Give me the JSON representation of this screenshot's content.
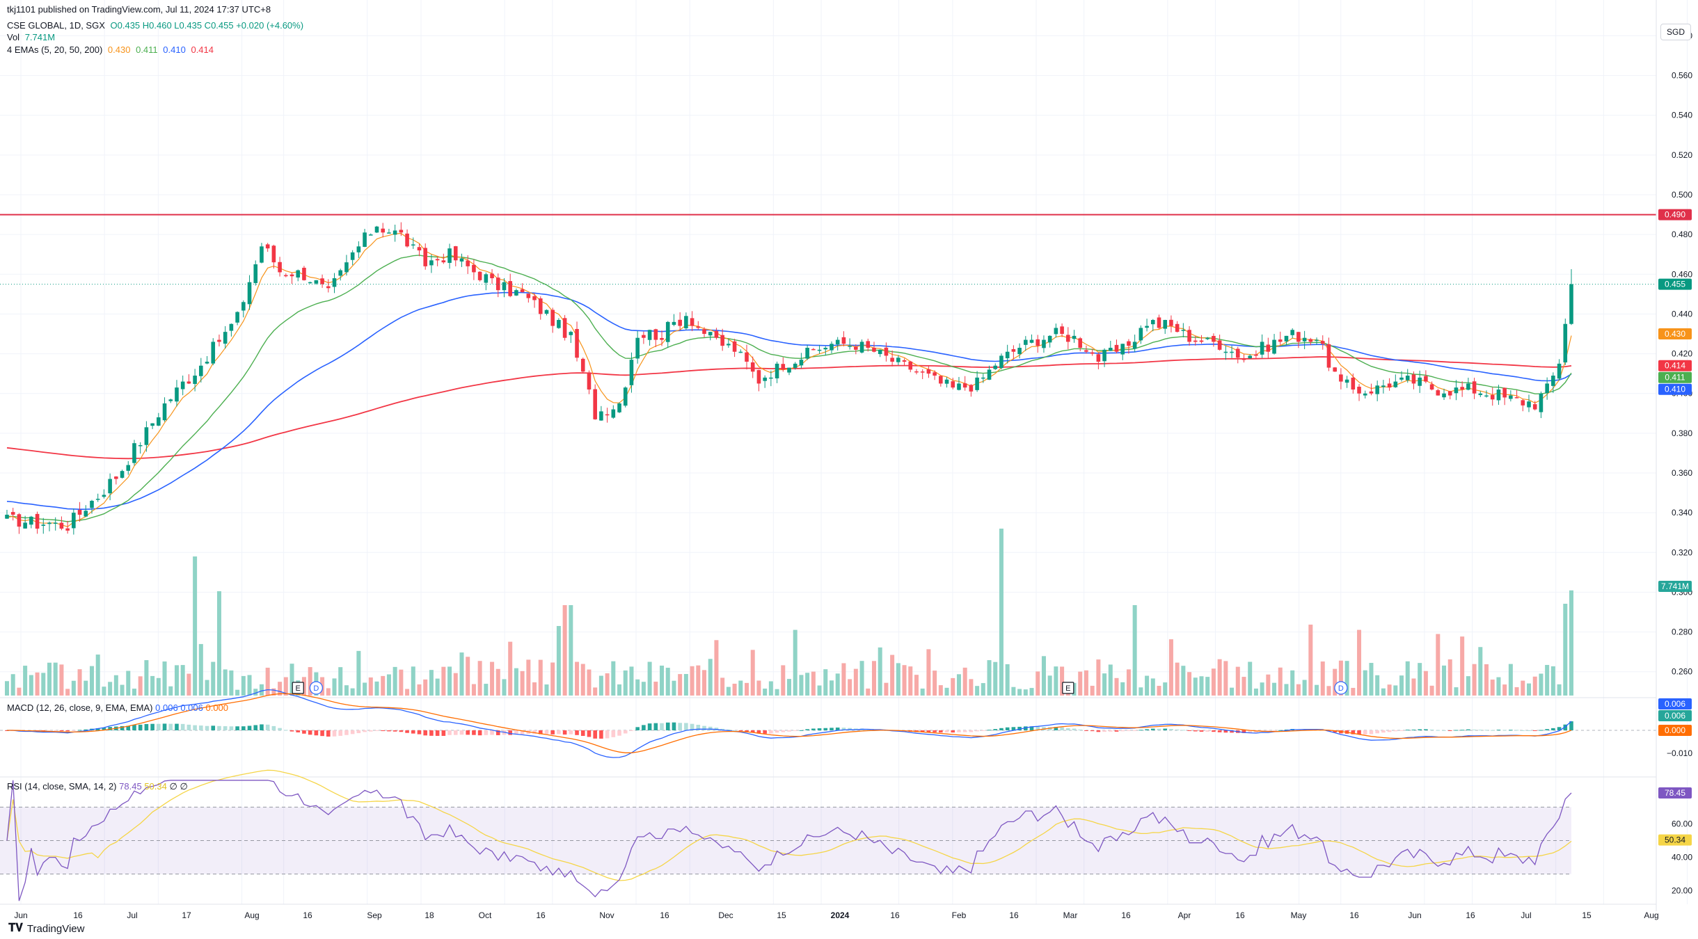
{
  "header": {
    "published": "tkj1101 published on TradingView.com, Jul 11, 2024 17:37 UTC+8"
  },
  "legend": {
    "symbol": "CSE GLOBAL, 1D, SGX",
    "ohlc": "O0.435 H0.460 L0.435 C0.455 +0.020 (+4.60%)",
    "vol_label": "Vol",
    "vol_value": "7.741M",
    "ema_label": "4 EMAs (5, 20, 50, 200)",
    "ema_values": [
      "0.430",
      "0.411",
      "0.410",
      "0.414"
    ],
    "macd_label": "MACD (12, 26, close, 9, EMA, EMA)",
    "macd_values": [
      "0.006",
      "0.006",
      "0.000"
    ],
    "rsi_label": "RSI (14, close, SMA, 14, 2)",
    "rsi_values": [
      "78.45",
      "50.34",
      "∅",
      "∅"
    ]
  },
  "currency": "SGD",
  "brand": "TradingView",
  "colors": {
    "up": "#089981",
    "down": "#f23645",
    "ema5": "#f7931a",
    "ema20": "#4caf50",
    "ema50": "#2962ff",
    "ema200": "#f23645",
    "resistance": "#e0304a",
    "macd": "#2962ff",
    "signal": "#ff6d00",
    "rsi": "#7e57c2",
    "rsi_ma": "#f5d547"
  },
  "chart_data": {
    "type": "candlestick",
    "symbol": "CSE GLOBAL",
    "interval": "1D",
    "exchange": "SGX",
    "price_axis": {
      "ticks": [
        "0.580",
        "0.560",
        "0.540",
        "0.520",
        "0.500",
        "0.480",
        "0.460",
        "0.440",
        "0.420",
        "0.400",
        "0.380",
        "0.360",
        "0.340",
        "0.320",
        "0.300",
        "0.280",
        "0.260"
      ],
      "range": [
        0.248,
        0.598
      ]
    },
    "time_axis": {
      "ticks": [
        "Jun",
        "16",
        "Jul",
        "17",
        "Aug",
        "16",
        "Sep",
        "18",
        "Oct",
        "16",
        "Nov",
        "16",
        "Dec",
        "15",
        "2024",
        "16",
        "Feb",
        "16",
        "Mar",
        "16",
        "Apr",
        "16",
        "May",
        "16",
        "Jun",
        "16",
        "Jul",
        "15",
        "Aug"
      ]
    },
    "horizontal_line": {
      "value": 0.49,
      "label": "0.490"
    },
    "last_price": {
      "value": 0.455,
      "label": "0.455"
    },
    "price_labels": [
      {
        "value": 0.49,
        "label": "0.490"
      },
      {
        "value": 0.455,
        "label": "0.455"
      },
      {
        "value": 0.43,
        "label": "0.430"
      },
      {
        "value": 0.414,
        "label": "0.414"
      },
      {
        "value": 0.411,
        "label": "0.411"
      },
      {
        "value": 0.41,
        "label": "0.410"
      },
      {
        "value": 0.3,
        "label": "7.741M"
      }
    ],
    "trend_waypoints": [
      [
        0,
        0.336
      ],
      [
        10,
        0.334
      ],
      [
        18,
        0.358
      ],
      [
        26,
        0.395
      ],
      [
        32,
        0.415
      ],
      [
        38,
        0.438
      ],
      [
        42,
        0.475
      ],
      [
        45,
        0.462
      ],
      [
        49,
        0.46
      ],
      [
        53,
        0.45
      ],
      [
        57,
        0.47
      ],
      [
        61,
        0.485
      ],
      [
        65,
        0.48
      ],
      [
        69,
        0.465
      ],
      [
        73,
        0.47
      ],
      [
        77,
        0.462
      ],
      [
        81,
        0.454
      ],
      [
        85,
        0.45
      ],
      [
        89,
        0.44
      ],
      [
        93,
        0.428
      ],
      [
        97,
        0.39
      ],
      [
        101,
        0.395
      ],
      [
        104,
        0.43
      ],
      [
        108,
        0.43
      ],
      [
        112,
        0.44
      ],
      [
        116,
        0.428
      ],
      [
        120,
        0.422
      ],
      [
        124,
        0.407
      ],
      [
        128,
        0.415
      ],
      [
        132,
        0.42
      ],
      [
        136,
        0.425
      ],
      [
        140,
        0.425
      ],
      [
        144,
        0.42
      ],
      [
        148,
        0.414
      ],
      [
        152,
        0.408
      ],
      [
        156,
        0.402
      ],
      [
        160,
        0.405
      ],
      [
        164,
        0.418
      ],
      [
        168,
        0.425
      ],
      [
        172,
        0.43
      ],
      [
        176,
        0.428
      ],
      [
        180,
        0.418
      ],
      [
        184,
        0.422
      ],
      [
        188,
        0.436
      ],
      [
        192,
        0.434
      ],
      [
        196,
        0.427
      ],
      [
        200,
        0.425
      ],
      [
        204,
        0.418
      ],
      [
        208,
        0.424
      ],
      [
        212,
        0.43
      ],
      [
        216,
        0.428
      ],
      [
        220,
        0.404
      ],
      [
        224,
        0.401
      ],
      [
        228,
        0.405
      ],
      [
        232,
        0.406
      ],
      [
        236,
        0.402
      ],
      [
        240,
        0.402
      ],
      [
        244,
        0.401
      ],
      [
        248,
        0.397
      ],
      [
        252,
        0.395
      ],
      [
        254,
        0.402
      ],
      [
        256,
        0.415
      ],
      [
        257,
        0.435
      ],
      [
        258,
        0.455
      ]
    ],
    "volume_bars_count": 259,
    "volume_last": "7.741M",
    "event_markers": [
      {
        "type": "E",
        "index": 48
      },
      {
        "type": "D",
        "index": 51
      },
      {
        "type": "E",
        "index": 175
      },
      {
        "type": "D",
        "index": 220
      }
    ],
    "indicators": {
      "ema": [
        {
          "period": 5,
          "value": 0.43
        },
        {
          "period": 20,
          "value": 0.411
        },
        {
          "period": 50,
          "value": 0.41
        },
        {
          "period": 200,
          "value": 0.414
        }
      ],
      "macd": {
        "fast": 12,
        "slow": 26,
        "signal": 9,
        "macd": 0.006,
        "signal_value": 0.006,
        "hist": 0.0,
        "axis_ticks": [
          "−0.010"
        ]
      },
      "rsi": {
        "period": 14,
        "value": 78.45,
        "ma": 50.34,
        "levels": [
          70,
          50,
          30
        ],
        "axis_ticks": [
          "60.00",
          "40.00",
          "20.00"
        ]
      }
    }
  }
}
